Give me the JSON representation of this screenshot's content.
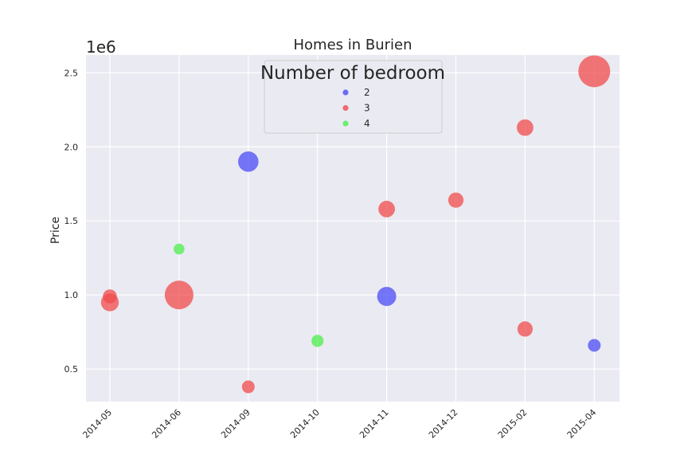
{
  "chart_data": {
    "type": "scatter",
    "title": "Homes in Burien",
    "xlabel": "",
    "ylabel": "Price",
    "y_offset_label": "1e6",
    "x_categories": [
      "2014-05",
      "2014-06",
      "2014-09",
      "2014-10",
      "2014-11",
      "2014-12",
      "2015-02",
      "2015-04"
    ],
    "y_ticks": [
      0.5,
      1.0,
      1.5,
      2.0,
      2.5
    ],
    "y_tick_labels": [
      "0.5",
      "1.0",
      "1.5",
      "2.0",
      "2.5"
    ],
    "ylim": [
      0.28,
      2.62
    ],
    "y_unit_multiplier": 1000000,
    "grid": true,
    "legend": {
      "title": "Number of bedroom",
      "placement": "upper-center",
      "entries": [
        {
          "label": "2",
          "color": "#4b4bf5"
        },
        {
          "label": "3",
          "color": "#f04b4b"
        },
        {
          "label": "4",
          "color": "#4bef4b"
        }
      ]
    },
    "colors": {
      "2": "#4b4bf5",
      "3": "#f04b4b",
      "4": "#4bef4b",
      "background": "#eaeaf2",
      "grid": "#ffffff"
    },
    "points": [
      {
        "x": "2014-05",
        "y": 0.99,
        "bedrooms": "3",
        "size": 2.2
      },
      {
        "x": "2014-05",
        "y": 0.95,
        "bedrooms": "3",
        "size": 2.8
      },
      {
        "x": "2014-06",
        "y": 1.31,
        "bedrooms": "4",
        "size": 1.7
      },
      {
        "x": "2014-06",
        "y": 1.0,
        "bedrooms": "3",
        "size": 4.5
      },
      {
        "x": "2014-09",
        "y": 1.9,
        "bedrooms": "2",
        "size": 3.2
      },
      {
        "x": "2014-09",
        "y": 0.38,
        "bedrooms": "3",
        "size": 2.0
      },
      {
        "x": "2014-10",
        "y": 0.69,
        "bedrooms": "4",
        "size": 1.9
      },
      {
        "x": "2014-11",
        "y": 1.58,
        "bedrooms": "3",
        "size": 2.6
      },
      {
        "x": "2014-11",
        "y": 0.99,
        "bedrooms": "2",
        "size": 3.0
      },
      {
        "x": "2014-12",
        "y": 1.64,
        "bedrooms": "3",
        "size": 2.4
      },
      {
        "x": "2015-02",
        "y": 2.13,
        "bedrooms": "3",
        "size": 2.6
      },
      {
        "x": "2015-02",
        "y": 0.77,
        "bedrooms": "3",
        "size": 2.4
      },
      {
        "x": "2015-04",
        "y": 2.51,
        "bedrooms": "3",
        "size": 5.0
      },
      {
        "x": "2015-04",
        "y": 0.66,
        "bedrooms": "2",
        "size": 2.0
      }
    ]
  }
}
